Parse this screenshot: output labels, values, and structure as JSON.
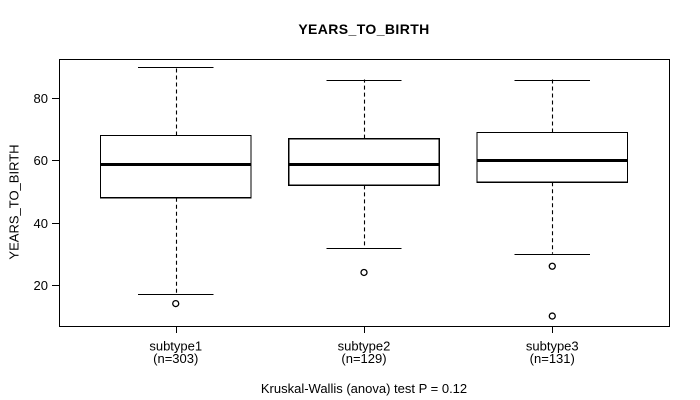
{
  "figure": {
    "background": "#ffffff",
    "foreground": "#000000"
  },
  "chart_data": {
    "type": "boxplot",
    "title": "YEARS_TO_BIRTH",
    "ylabel": "YEARS_TO_BIRTH",
    "xlabel": "",
    "footer": "Kruskal-Wallis (anova) test P = 0.12",
    "y_ticks": [
      20,
      40,
      60,
      80
    ],
    "ylim": [
      6.8,
      92.6
    ],
    "grid": false,
    "legend": "none",
    "groups": [
      {
        "label": "subtype1",
        "n": 303,
        "n_label": "(n=303)",
        "whisker_low": 17,
        "q1": 48,
        "median": 59,
        "q3": 68,
        "whisker_high": 90,
        "outliers": [
          14
        ]
      },
      {
        "label": "subtype2",
        "n": 129,
        "n_label": "(n=129)",
        "whisker_low": 32,
        "q1": 52,
        "median": 59,
        "q3": 67,
        "whisker_high": 86,
        "outliers": [
          24
        ]
      },
      {
        "label": "subtype3",
        "n": 131,
        "n_label": "(n=131)",
        "whisker_low": 30,
        "q1": 53,
        "median": 60,
        "q3": 69,
        "whisker_high": 86,
        "outliers": [
          26,
          10
        ]
      }
    ]
  }
}
